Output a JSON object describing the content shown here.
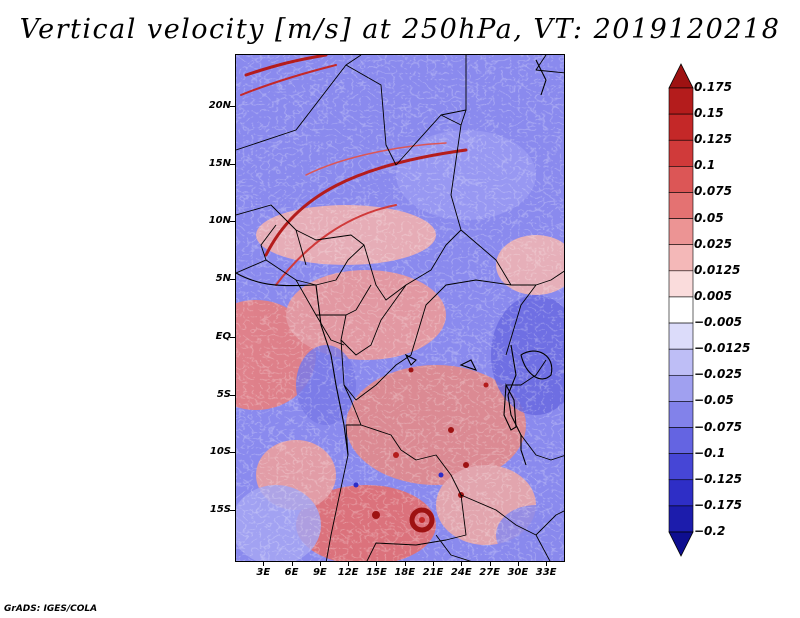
{
  "title": "Vertical velocity [m/s] at 250hPa, VT: 2019120218",
  "credit": "GrADS: IGES/COLA",
  "map": {
    "variable": "Vertical velocity",
    "units": "m/s",
    "level": "250hPa",
    "valid_time": "2019120218",
    "region_note": "Central and southern Africa, approx 0E-35E, 19S-24N",
    "lat_labels": [
      {
        "label": "20N",
        "lat": 20
      },
      {
        "label": "15N",
        "lat": 15
      },
      {
        "label": "10N",
        "lat": 10
      },
      {
        "label": "5N",
        "lat": 5
      },
      {
        "label": "EQ",
        "lat": 0
      },
      {
        "label": "5S",
        "lat": -5
      },
      {
        "label": "10S",
        "lat": -10
      },
      {
        "label": "15S",
        "lat": -15
      }
    ],
    "lon_labels": [
      {
        "label": "3E",
        "lon": 3
      },
      {
        "label": "6E",
        "lon": 6
      },
      {
        "label": "9E",
        "lon": 9
      },
      {
        "label": "12E",
        "lon": 12
      },
      {
        "label": "15E",
        "lon": 15
      },
      {
        "label": "18E",
        "lon": 18
      },
      {
        "label": "21E",
        "lon": 21
      },
      {
        "label": "24E",
        "lon": 24
      },
      {
        "label": "27E",
        "lon": 27
      },
      {
        "label": "30E",
        "lon": 30
      },
      {
        "label": "33E",
        "lon": 33
      }
    ],
    "extent": {
      "lon_min": 0,
      "lon_max": 35,
      "lat_min": -19.5,
      "lat_max": 24.5
    }
  },
  "colorbar": {
    "labels": [
      "0.175",
      "0.15",
      "0.125",
      "0.1",
      "0.075",
      "0.05",
      "0.025",
      "0.0125",
      "0.005",
      "−0.005",
      "−0.0125",
      "−0.025",
      "−0.05",
      "−0.075",
      "−0.1",
      "−0.125",
      "−0.175",
      "−0.2"
    ],
    "colors": [
      "#9e1212",
      "#b41c1c",
      "#c42828",
      "#d03a3a",
      "#dc5656",
      "#e47272",
      "#ec9494",
      "#f4b8b8",
      "#fadcdc",
      "#ffffff",
      "#dcdcfa",
      "#bebef6",
      "#a0a0f0",
      "#8282ea",
      "#6464e2",
      "#4646d6",
      "#2e2ec6",
      "#1c1cac",
      "#0e0e90"
    ],
    "top_arrow_color": "#9e1212",
    "bottom_arrow_color": "#0e0e90"
  }
}
